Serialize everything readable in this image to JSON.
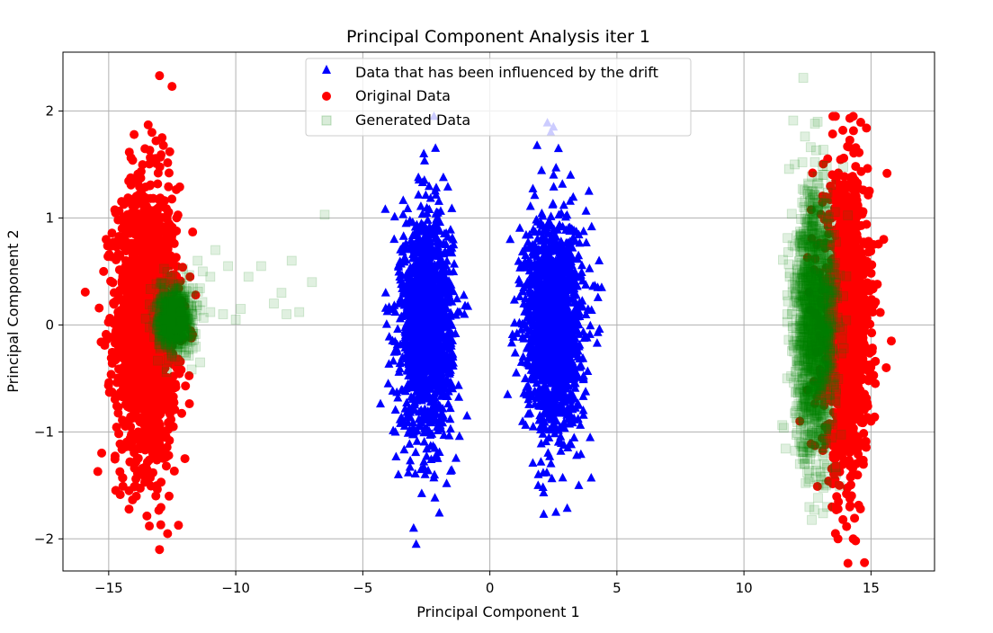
{
  "chart_data": {
    "type": "scatter",
    "title": "Principal Component Analysis iter 1",
    "xlabel": "Principal Component 1",
    "ylabel": "Principal Component 2",
    "xlim": [
      -16.8,
      17.5
    ],
    "ylim": [
      -2.3,
      2.55
    ],
    "grid": true,
    "legend_placement": "upper-center",
    "xticks": [
      -15,
      -10,
      -5,
      0,
      5,
      10,
      15
    ],
    "xtick_labels": [
      "−15",
      "−10",
      "−5",
      "0",
      "5",
      "10",
      "15"
    ],
    "yticks": [
      -2,
      -1,
      0,
      1,
      2
    ],
    "ytick_labels": [
      "−2",
      "−1",
      "0",
      "1",
      "2"
    ],
    "series": [
      {
        "name": "Data that has been influenced by the drift",
        "marker": "triangle",
        "color": "#0000ff",
        "clusters": [
          {
            "center": [
              -2.5,
              0.0
            ],
            "std": [
              0.5,
              0.5
            ],
            "n": 1600
          },
          {
            "center": [
              2.5,
              0.0
            ],
            "std": [
              0.55,
              0.5
            ],
            "n": 1600
          }
        ],
        "points": [
          [
            -2.2,
            1.95
          ],
          [
            -2.6,
            1.6
          ],
          [
            -3.0,
            -1.9
          ],
          [
            -2.9,
            -2.05
          ],
          [
            2.4,
            1.8
          ],
          [
            2.5,
            1.85
          ],
          [
            2.7,
            1.65
          ],
          [
            2.6,
            -1.75
          ],
          [
            4.3,
            0.6
          ],
          [
            4.4,
            0.35
          ],
          [
            0.8,
            0.8
          ],
          [
            0.7,
            -0.65
          ],
          [
            -4.1,
            0.3
          ],
          [
            -4.0,
            -0.55
          ],
          [
            -1.0,
            0.1
          ],
          [
            -0.9,
            -0.85
          ],
          [
            -3.6,
            -1.4
          ],
          [
            1.9,
            -1.5
          ],
          [
            3.5,
            -1.5
          ],
          [
            3.9,
            1.25
          ]
        ]
      },
      {
        "name": "Original Data",
        "marker": "circle",
        "color": "#ff0000",
        "clusters": [
          {
            "center": [
              -13.5,
              0.0
            ],
            "std": [
              0.6,
              0.65
            ],
            "n": 1800
          },
          {
            "center": [
              14.0,
              0.0
            ],
            "std": [
              0.45,
              0.65
            ],
            "n": 1500
          }
        ],
        "points": [
          [
            -13.0,
            2.33
          ],
          [
            -13.0,
            -2.1
          ],
          [
            -14.0,
            1.78
          ],
          [
            -13.3,
            1.8
          ],
          [
            -12.9,
            1.75
          ],
          [
            -13.4,
            -1.88
          ],
          [
            -14.2,
            -1.55
          ],
          [
            -15.1,
            0.8
          ],
          [
            -15.2,
            0.5
          ],
          [
            -11.8,
            0.45
          ],
          [
            -12.0,
            -1.25
          ],
          [
            13.5,
            1.95
          ],
          [
            14.3,
            1.95
          ],
          [
            14.3,
            -2.0
          ],
          [
            13.7,
            -2.0
          ],
          [
            13.6,
            -1.95
          ],
          [
            15.5,
            0.8
          ],
          [
            15.8,
            -0.15
          ],
          [
            15.6,
            -0.4
          ],
          [
            15.0,
            -0.9
          ],
          [
            12.2,
            -0.9
          ],
          [
            12.7,
            1.42
          ],
          [
            12.5,
            0.63
          ]
        ]
      },
      {
        "name": "Generated Data",
        "marker": "square",
        "color": "#008000",
        "opacity": 0.12,
        "clusters": [
          {
            "center": [
              -12.4,
              0.05
            ],
            "std": [
              0.35,
              0.15
            ],
            "n": 700
          },
          {
            "center": [
              12.8,
              0.0
            ],
            "std": [
              0.4,
              0.6
            ],
            "n": 1600
          }
        ],
        "points": [
          [
            -6.5,
            1.03
          ],
          [
            -7.0,
            0.4
          ],
          [
            -7.8,
            0.6
          ],
          [
            -8.2,
            0.3
          ],
          [
            -9.0,
            0.55
          ],
          [
            -8.5,
            0.2
          ],
          [
            -9.5,
            0.45
          ],
          [
            -10.3,
            0.55
          ],
          [
            -10.8,
            0.7
          ],
          [
            -11.0,
            0.45
          ],
          [
            -9.8,
            0.15
          ],
          [
            -10.5,
            0.1
          ],
          [
            -7.5,
            0.12
          ],
          [
            -8.0,
            0.1
          ],
          [
            -11.3,
            0.5
          ],
          [
            -11.5,
            0.6
          ],
          [
            -11.4,
            -0.35
          ],
          [
            -11.0,
            0.12
          ],
          [
            -10.0,
            0.05
          ],
          [
            12.3,
            1.52
          ],
          [
            12.9,
            1.9
          ],
          [
            12.0,
            1.5
          ],
          [
            12.2,
            -1.3
          ],
          [
            12.5,
            -1.25
          ],
          [
            11.8,
            0.45
          ],
          [
            11.7,
            -0.5
          ]
        ]
      }
    ]
  }
}
